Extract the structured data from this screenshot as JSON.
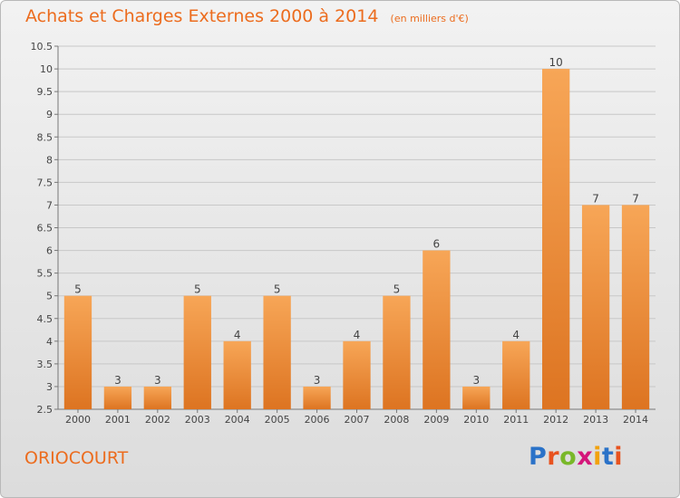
{
  "title": "Achats et Charges Externes 2000 à 2014",
  "unit": "(en milliers d'€)",
  "commune": "ORIOCOURT",
  "logo": {
    "letters": [
      "P",
      "r",
      "o",
      "x",
      "i",
      "t",
      "i"
    ],
    "colors": [
      "#2a72c8",
      "#e8531f",
      "#79b829",
      "#d4167a",
      "#f2a20c",
      "#2a72c8",
      "#e8531f"
    ]
  },
  "colors": {
    "bar_top": "#f7a657",
    "bar_bottom": "#dd7421",
    "title": "#ec6c1e",
    "text": "#444444",
    "grid": "#c8c8c8"
  },
  "chart_data": {
    "type": "bar",
    "categories": [
      "2000",
      "2001",
      "2002",
      "2003",
      "2004",
      "2005",
      "2006",
      "2007",
      "2008",
      "2009",
      "2010",
      "2011",
      "2012",
      "2013",
      "2014"
    ],
    "values": [
      5,
      3,
      3,
      5,
      4,
      5,
      3,
      4,
      5,
      6,
      3,
      4,
      10,
      7,
      7
    ],
    "value_labels": [
      "5",
      "3",
      "3",
      "5",
      "4",
      "5",
      "3",
      "4",
      "5",
      "6",
      "3",
      "4",
      "10",
      "7",
      "7"
    ],
    "yticks": [
      2.5,
      3,
      3.5,
      4,
      4.5,
      5,
      5.5,
      6,
      6.5,
      7,
      7.5,
      8,
      8.5,
      9,
      9.5,
      10,
      10.5
    ],
    "ytick_labels": [
      "2.5",
      "3",
      "3.5",
      "4",
      "4.5",
      "5",
      "5.5",
      "6",
      "6.5",
      "7",
      "7.5",
      "8",
      "8.5",
      "9",
      "9.5",
      "10",
      "10.5"
    ],
    "ylim": [
      2.5,
      10.5
    ],
    "grid": true
  }
}
